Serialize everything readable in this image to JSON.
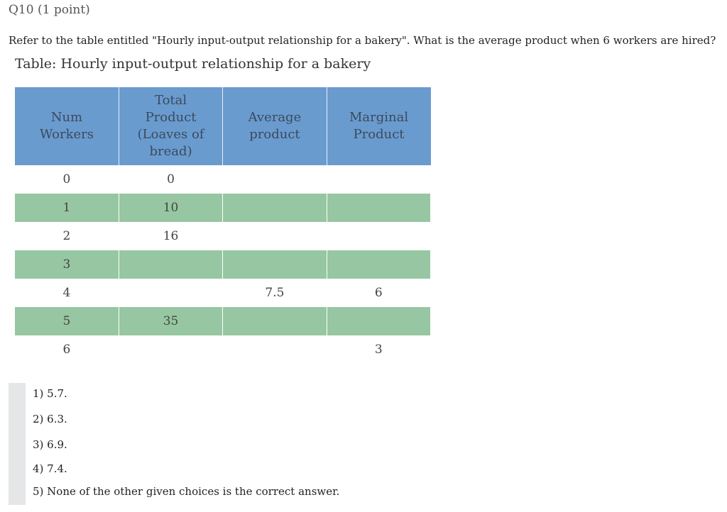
{
  "header": {
    "title": "Q10 (1 point)"
  },
  "question": "Refer to the table entitled \"Hourly input-output relationship for a bakery\". What is the average product when 6 workers are hired?",
  "table": {
    "title": "Table: Hourly input-output relationship for a bakery",
    "columns": [
      "Num Workers",
      "Total Product (Loaves of bread)",
      "Average product",
      "Marginal Product"
    ],
    "rows": [
      [
        "0",
        "0",
        null,
        null
      ],
      [
        "1",
        "10",
        null,
        null
      ],
      [
        "2",
        "16",
        null,
        null
      ],
      [
        "3",
        null,
        null,
        null
      ],
      [
        "4",
        null,
        "7.5",
        "6"
      ],
      [
        "5",
        "35",
        null,
        null
      ],
      [
        "6",
        null,
        null,
        "3"
      ]
    ]
  },
  "choices": [
    "1) 5.7.",
    "2) 6.3.",
    "3) 6.9.",
    "4) 7.4.",
    "5) None of the other given choices is the correct answer."
  ]
}
